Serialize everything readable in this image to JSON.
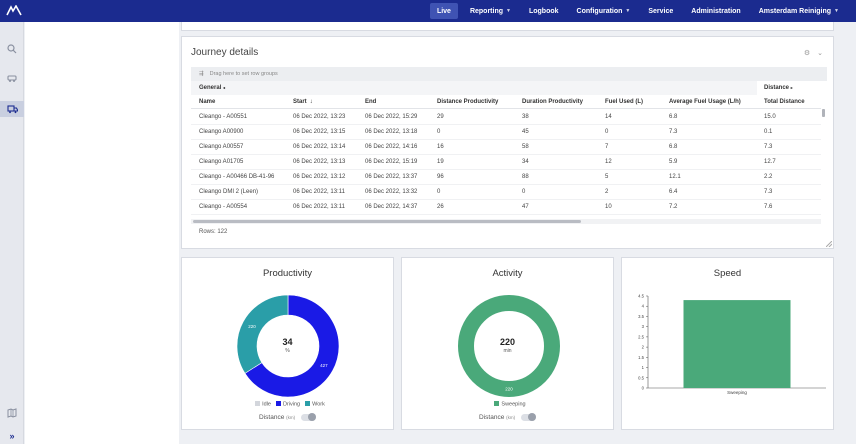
{
  "nav": {
    "items": [
      {
        "label": "Live",
        "active": true,
        "dropdown": false
      },
      {
        "label": "Reporting",
        "active": false,
        "dropdown": true
      },
      {
        "label": "Logbook",
        "active": false,
        "dropdown": false
      },
      {
        "label": "Configuration",
        "active": false,
        "dropdown": true
      },
      {
        "label": "Service",
        "active": false,
        "dropdown": false
      },
      {
        "label": "Administration",
        "active": false,
        "dropdown": false
      },
      {
        "label": "Amsterdam Reiniging",
        "active": false,
        "dropdown": true
      }
    ]
  },
  "sidebar": {
    "icons": [
      "search-icon",
      "vehicle-icon",
      "truck-list-icon",
      "map-icon",
      "expand-icon"
    ],
    "expand_label": "»"
  },
  "journey": {
    "title": "Journey details",
    "group_hint": "Drag here to set row groups",
    "group_headers": {
      "general": "General",
      "distance": "Distance"
    },
    "columns": [
      "Name",
      "Start",
      "End",
      "Distance Productivity",
      "Duration Productivity",
      "Fuel Used (L)",
      "Average Fuel Usage (L/h)",
      "Total Distance"
    ],
    "sort_indicator": "↓",
    "rows": [
      [
        "Cleango - A00551",
        "06 Dec 2022, 13:23",
        "06 Dec 2022, 15:29",
        "29",
        "38",
        "14",
        "6.8",
        "15.0"
      ],
      [
        "Cleango A00900",
        "06 Dec 2022, 13:15",
        "06 Dec 2022, 13:18",
        "0",
        "45",
        "0",
        "7.3",
        "0.1"
      ],
      [
        "Cleango A00557",
        "06 Dec 2022, 13:14",
        "06 Dec 2022, 14:16",
        "16",
        "58",
        "7",
        "6.8",
        "7.3"
      ],
      [
        "Cleango A01705",
        "06 Dec 2022, 13:13",
        "06 Dec 2022, 15:19",
        "19",
        "34",
        "12",
        "5.9",
        "12.7"
      ],
      [
        "Cleango - A00466 DB-41-96",
        "06 Dec 2022, 13:12",
        "06 Dec 2022, 13:37",
        "96",
        "88",
        "5",
        "12.1",
        "2.2"
      ],
      [
        "Cleango DMI 2 (Leen)",
        "06 Dec 2022, 13:11",
        "06 Dec 2022, 13:32",
        "0",
        "0",
        "2",
        "6.4",
        "7.3"
      ],
      [
        "Cleango - A00554",
        "06 Dec 2022, 13:11",
        "06 Dec 2022, 14:37",
        "26",
        "47",
        "10",
        "7.2",
        "7.6"
      ]
    ],
    "rows_count": "Rows: 122"
  },
  "productivity": {
    "title": "Productivity",
    "center_value": "34",
    "center_unit": "%",
    "legend": [
      {
        "name": "Idle",
        "color": "#d3d6dc"
      },
      {
        "name": "Driving",
        "color": "#1a1ae6"
      },
      {
        "name": "Work",
        "color": "#2a9ea8"
      }
    ],
    "toggle_label": "Distance",
    "toggle_unit": "(km)"
  },
  "activity": {
    "title": "Activity",
    "center_value": "220",
    "center_unit": "min",
    "legend": [
      {
        "name": "Sweeping",
        "color": "#4aa97a"
      }
    ],
    "toggle_label": "Distance",
    "toggle_unit": "(km)"
  },
  "speed": {
    "title": "Speed"
  },
  "chart_data": [
    {
      "type": "pie",
      "title": "Productivity",
      "labels": [
        "Driving",
        "Work"
      ],
      "values": [
        427,
        220
      ],
      "slice_labels": [
        "427",
        "220"
      ],
      "colors": [
        "#1a1ae6",
        "#2a9ea8"
      ],
      "donut": true
    },
    {
      "type": "pie",
      "title": "Activity",
      "labels": [
        "Sweeping"
      ],
      "values": [
        220
      ],
      "slice_labels": [
        "220"
      ],
      "colors": [
        "#4aa97a"
      ],
      "donut": true
    },
    {
      "type": "bar",
      "title": "Speed",
      "categories": [
        "Sweeping"
      ],
      "values": [
        4.3
      ],
      "ylim": [
        0,
        4.5
      ],
      "yticks": [
        "0",
        "0.5",
        "1",
        "1.5",
        "2",
        "2.5",
        "3",
        "3.5",
        "4",
        "4.5"
      ],
      "color": "#4aa97a",
      "grid": false
    }
  ]
}
